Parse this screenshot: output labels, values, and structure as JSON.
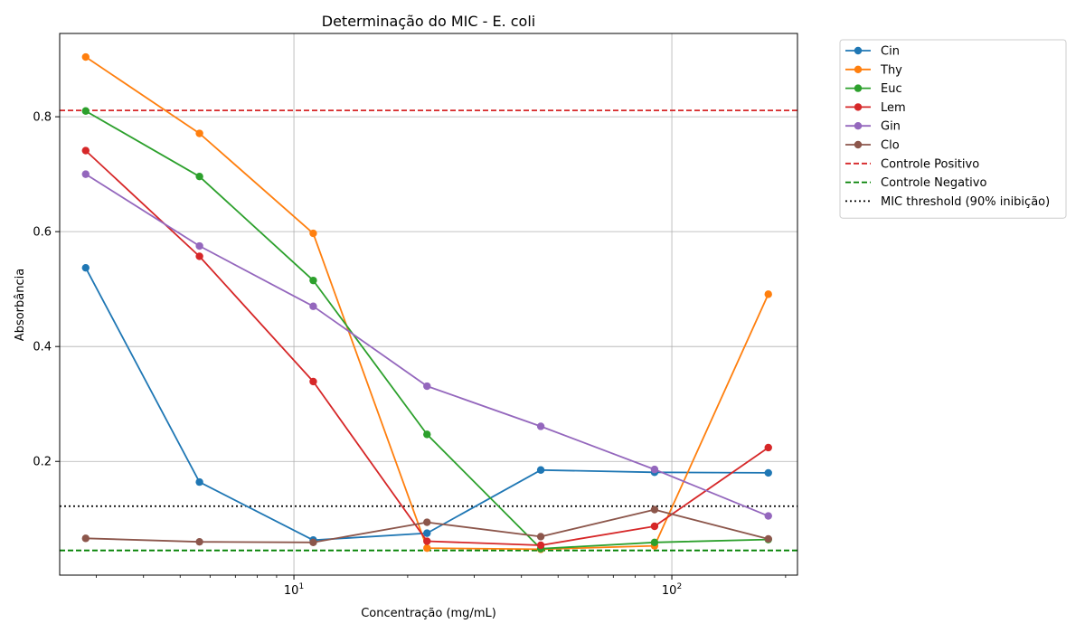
{
  "chart_data": {
    "type": "line",
    "title": "Determinação do MIC - E. coli",
    "xlabel": "Concentração (mg/mL)",
    "ylabel": "Absorbância",
    "xscale": "log",
    "xlim": [
      2.4,
      215
    ],
    "ylim": [
      0.002,
      0.945
    ],
    "grid": true,
    "legend_position": "outside-right",
    "x": [
      2.8125,
      5.625,
      11.25,
      22.5,
      45,
      90,
      180
    ],
    "x_ticks": [
      {
        "value": 10,
        "base": "10",
        "exp": "1"
      },
      {
        "value": 100,
        "base": "10",
        "exp": "2"
      }
    ],
    "y_ticks": [
      {
        "value": 0.2,
        "label": "0.2"
      },
      {
        "value": 0.4,
        "label": "0.4"
      },
      {
        "value": 0.6,
        "label": "0.6"
      },
      {
        "value": 0.8,
        "label": "0.8"
      }
    ],
    "series": [
      {
        "name": "Cin",
        "color": "#1f77b4",
        "values": [
          0.537,
          0.164,
          0.063,
          0.075,
          0.185,
          0.181,
          0.18
        ]
      },
      {
        "name": "Thy",
        "color": "#ff7f0e",
        "values": [
          0.904,
          0.771,
          0.597,
          0.049,
          0.047,
          0.053,
          0.491
        ]
      },
      {
        "name": "Euc",
        "color": "#2ca02c",
        "values": [
          0.81,
          0.696,
          0.515,
          0.247,
          0.048,
          0.059,
          0.064
        ]
      },
      {
        "name": "Lem",
        "color": "#d62728",
        "values": [
          0.741,
          0.557,
          0.339,
          0.061,
          0.054,
          0.087,
          0.224
        ]
      },
      {
        "name": "Gin",
        "color": "#9467bd",
        "values": [
          0.7,
          0.575,
          0.47,
          0.331,
          0.261,
          0.186,
          0.105
        ]
      },
      {
        "name": "Clo",
        "color": "#8c564b",
        "values": [
          0.066,
          0.06,
          0.059,
          0.094,
          0.069,
          0.116,
          0.065
        ]
      }
    ],
    "reference_lines": [
      {
        "name": "Controle Positivo",
        "y": 0.811,
        "color": "#d62728",
        "style": "dashed"
      },
      {
        "name": "Controle Negativo",
        "y": 0.045,
        "color": "#008000",
        "style": "dashed"
      },
      {
        "name": "MIC threshold (90% inibição)",
        "y": 0.122,
        "color": "#000000",
        "style": "dotted"
      }
    ]
  }
}
